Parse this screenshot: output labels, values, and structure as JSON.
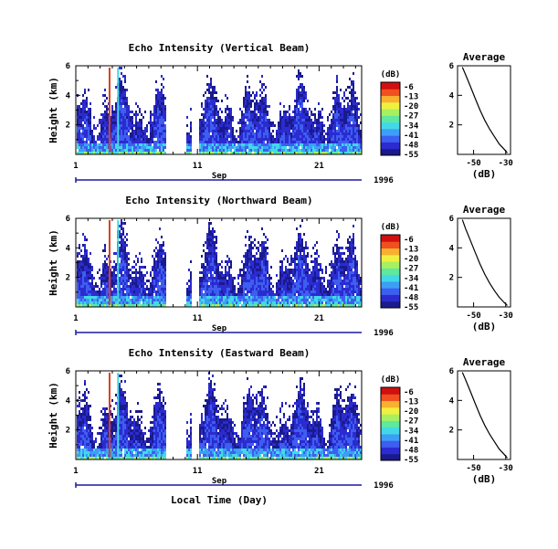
{
  "chart_data": [
    {
      "type": "heatmap",
      "title": "Echo Intensity (Vertical Beam)",
      "ylabel": "Height (km)",
      "yticks": [
        2,
        4,
        6
      ],
      "ylim": [
        0,
        6
      ],
      "xticks": [
        1,
        11,
        21
      ],
      "xlim": [
        1,
        24.5
      ],
      "month_label": "Sep",
      "year_label": "1996",
      "colorbar": {
        "unit": "(dB)",
        "labels": [
          -6,
          -13,
          -20,
          -27,
          -34,
          -41,
          -48,
          -55
        ]
      },
      "data_gaps_day": [
        [
          8.3,
          10.0
        ],
        [
          10.5,
          11.1
        ]
      ],
      "strong_echo_streaks_day": [
        3.7,
        4.4
      ]
    },
    {
      "type": "line",
      "title": "Average",
      "xlabel": "(dB)",
      "xticks": [
        -50,
        -30
      ],
      "yticks": [
        2,
        4,
        6
      ],
      "ylim": [
        0,
        6
      ],
      "x": [
        -57,
        -55,
        -52,
        -49,
        -46,
        -43,
        -40,
        -37,
        -34,
        -31,
        -29
      ],
      "y": [
        5.9,
        5.4,
        4.6,
        3.8,
        3.0,
        2.3,
        1.7,
        1.2,
        0.7,
        0.35,
        0.1
      ]
    },
    {
      "type": "heatmap",
      "title": "Echo Intensity (Northward Beam)",
      "ylabel": "Height (km)",
      "yticks": [
        2,
        4,
        6
      ],
      "ylim": [
        0,
        6
      ],
      "xticks": [
        1,
        11,
        21
      ],
      "xlim": [
        1,
        24.5
      ],
      "month_label": "Sep",
      "year_label": "1996",
      "colorbar": {
        "unit": "(dB)",
        "labels": [
          -6,
          -13,
          -20,
          -27,
          -34,
          -41,
          -48,
          -55
        ]
      },
      "data_gaps_day": [
        [
          8.3,
          10.0
        ],
        [
          10.5,
          11.1
        ]
      ],
      "strong_echo_streaks_day": [
        3.7,
        4.4
      ]
    },
    {
      "type": "line",
      "title": "Average",
      "xlabel": "(dB)",
      "xticks": [
        -50,
        -30
      ],
      "yticks": [
        2,
        4,
        6
      ],
      "ylim": [
        0,
        6
      ],
      "x": [
        -57,
        -55,
        -52,
        -49,
        -46,
        -43,
        -40,
        -37,
        -34,
        -31,
        -29
      ],
      "y": [
        5.9,
        5.3,
        4.5,
        3.7,
        2.9,
        2.2,
        1.6,
        1.1,
        0.65,
        0.3,
        0.1
      ]
    },
    {
      "type": "heatmap",
      "title": "Echo Intensity (Eastward Beam)",
      "ylabel": "Height (km)",
      "xlabel": "Local Time (Day)",
      "yticks": [
        2,
        4,
        6
      ],
      "ylim": [
        0,
        6
      ],
      "xticks": [
        1,
        11,
        21
      ],
      "xlim": [
        1,
        24.5
      ],
      "month_label": "Sep",
      "year_label": "1996",
      "colorbar": {
        "unit": "(dB)",
        "labels": [
          -6,
          -13,
          -20,
          -27,
          -34,
          -41,
          -48,
          -55
        ]
      },
      "data_gaps_day": [
        [
          8.3,
          10.0
        ],
        [
          10.5,
          11.1
        ]
      ],
      "strong_echo_streaks_day": [
        3.7,
        4.4
      ]
    },
    {
      "type": "line",
      "title": "Average",
      "xlabel": "(dB)",
      "xticks": [
        -50,
        -30
      ],
      "yticks": [
        2,
        4,
        6
      ],
      "ylim": [
        0,
        6
      ],
      "x": [
        -57,
        -55,
        -52,
        -49,
        -46,
        -43,
        -40,
        -37,
        -34,
        -31,
        -29
      ],
      "y": [
        5.9,
        5.4,
        4.6,
        3.8,
        3.0,
        2.3,
        1.7,
        1.2,
        0.7,
        0.35,
        0.1
      ]
    }
  ],
  "colors": {
    "scale": [
      "#1a1a8c",
      "#2b2bd0",
      "#3d5ef0",
      "#3d9ef5",
      "#42d8e8",
      "#5ee8a0",
      "#a8f060",
      "#f0f040",
      "#f8b030",
      "#f05020",
      "#d01010"
    ]
  }
}
